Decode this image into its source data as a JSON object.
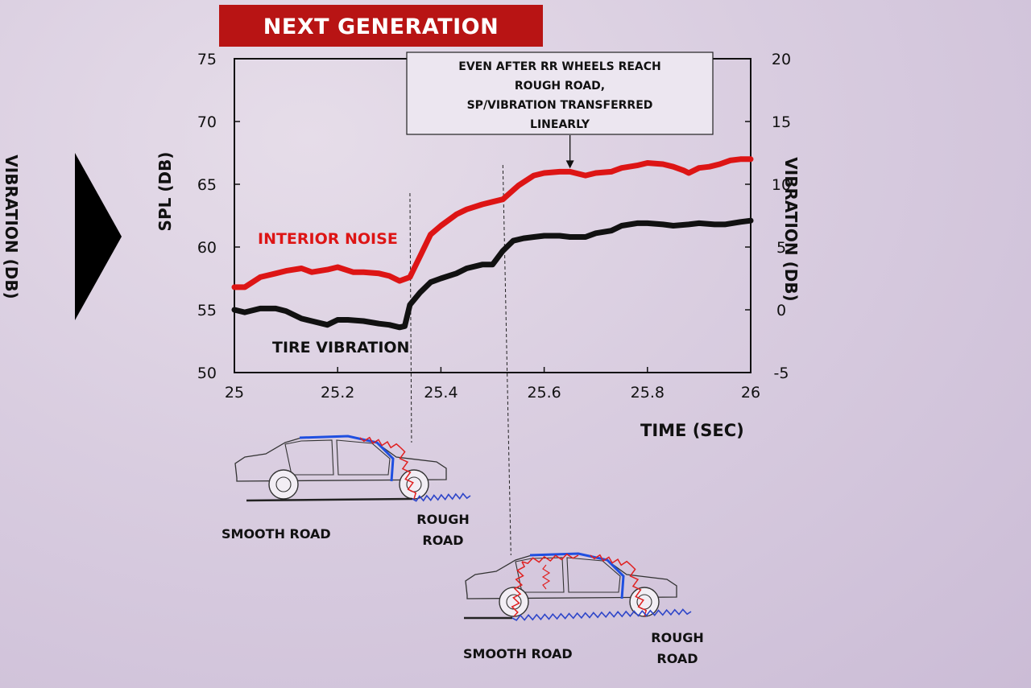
{
  "slide": {
    "header_label": "NEXT GENERATION",
    "left_side_label": "VIBRATION (DB)",
    "colors": {
      "banner": "#b81414",
      "noise": "#dd1515",
      "vibration": "#111111",
      "road_blue": "#2e46c9",
      "body_blue": "#1f4fe0",
      "path_red": "#e02020"
    }
  },
  "chart_data": {
    "type": "line",
    "x_axis": {
      "label": "TIME (SEC)",
      "range": [
        25,
        26
      ],
      "ticks": [
        "25",
        "25.2",
        "25.4",
        "25.6",
        "25.8",
        "26"
      ]
    },
    "y_left": {
      "label": "SPL (DB)",
      "range": [
        50,
        75
      ],
      "ticks": [
        "50",
        "55",
        "60",
        "65",
        "70",
        "75"
      ]
    },
    "y_right": {
      "label": "VIBRATION (DB)",
      "range": [
        -5,
        20
      ],
      "ticks": [
        "-5",
        "0",
        "5",
        "10",
        "15",
        "20"
      ]
    },
    "series": [
      {
        "name": "INTERIOR NOISE",
        "axis": "left",
        "color": "#dd1515",
        "x": [
          25.0,
          25.02,
          25.05,
          25.08,
          25.1,
          25.13,
          25.15,
          25.18,
          25.2,
          25.23,
          25.25,
          25.28,
          25.3,
          25.32,
          25.34,
          25.36,
          25.38,
          25.4,
          25.43,
          25.45,
          25.48,
          25.5,
          25.52,
          25.55,
          25.58,
          25.6,
          25.63,
          25.65,
          25.68,
          25.7,
          25.73,
          25.75,
          25.78,
          25.8,
          25.83,
          25.85,
          25.87,
          25.88,
          25.9,
          25.92,
          25.94,
          25.96,
          25.98,
          26.0
        ],
        "values": [
          56.8,
          56.8,
          57.6,
          57.9,
          58.1,
          58.3,
          58.0,
          58.2,
          58.4,
          58.0,
          58.0,
          57.9,
          57.7,
          57.3,
          57.6,
          59.3,
          61.0,
          61.7,
          62.6,
          63.0,
          63.4,
          63.6,
          63.8,
          64.9,
          65.7,
          65.9,
          66.0,
          66.0,
          65.7,
          65.9,
          66.0,
          66.3,
          66.5,
          66.7,
          66.6,
          66.4,
          66.1,
          65.9,
          66.3,
          66.4,
          66.6,
          66.9,
          67.0,
          67.0
        ]
      },
      {
        "name": "TIRE VIBRATION",
        "axis": "left",
        "color": "#111111",
        "x": [
          25.0,
          25.02,
          25.05,
          25.08,
          25.1,
          25.13,
          25.15,
          25.18,
          25.2,
          25.22,
          25.25,
          25.28,
          25.3,
          25.32,
          25.33,
          25.34,
          25.36,
          25.38,
          25.4,
          25.43,
          25.45,
          25.48,
          25.5,
          25.52,
          25.54,
          25.56,
          25.58,
          25.6,
          25.63,
          25.65,
          25.68,
          25.7,
          25.73,
          25.75,
          25.78,
          25.8,
          25.83,
          25.85,
          25.88,
          25.9,
          25.93,
          25.95,
          25.98,
          26.0
        ],
        "values": [
          55.0,
          54.8,
          55.1,
          55.1,
          54.9,
          54.3,
          54.1,
          53.8,
          54.2,
          54.2,
          54.1,
          53.9,
          53.8,
          53.6,
          53.7,
          55.4,
          56.4,
          57.2,
          57.5,
          57.9,
          58.3,
          58.6,
          58.6,
          59.7,
          60.5,
          60.7,
          60.8,
          60.9,
          60.9,
          60.8,
          60.8,
          61.1,
          61.3,
          61.7,
          61.9,
          61.9,
          61.8,
          61.7,
          61.8,
          61.9,
          61.8,
          61.8,
          62.0,
          62.1
        ]
      }
    ],
    "markers_x": [
      25.34,
      25.52
    ],
    "annotation": "EVEN AFTER RR WHEELS REACH ROUGH ROAD, SP/VIBRATION TRANSFERRED LINEARLY",
    "annotation_lines": [
      "EVEN AFTER RR WHEELS REACH",
      "ROUGH ROAD,",
      "SP/VIBRATION TRANSFERRED",
      "LINEARLY"
    ],
    "annotation_target": {
      "x": 25.65,
      "y": 66.0
    },
    "series_labels": {
      "noise": "INTERIOR NOISE",
      "vibration": "TIRE VIBRATION"
    }
  },
  "illustrations": {
    "first": {
      "left_label": "SMOOTH ROAD",
      "right_label_lines": [
        "ROUGH",
        "ROAD"
      ]
    },
    "second": {
      "left_label": "SMOOTH ROAD",
      "right_label_lines": [
        "ROUGH",
        "ROAD"
      ]
    }
  }
}
